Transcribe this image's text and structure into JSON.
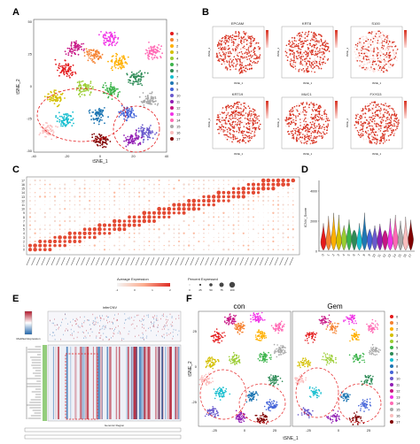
{
  "panel_labels": {
    "A": "A",
    "B": "B",
    "C": "C",
    "D": "D",
    "E": "E",
    "F": "F"
  },
  "colors": {
    "clusters": [
      "#e41a1c",
      "#f58231",
      "#ffb000",
      "#d4c000",
      "#9acd32",
      "#3cb44b",
      "#2e8b57",
      "#17becf",
      "#1f77b4",
      "#4363d8",
      "#6a5acd",
      "#911eb4",
      "#c71585",
      "#f032e6",
      "#ff69b4",
      "#a9a9a9",
      "#fabebe",
      "#800000"
    ],
    "feature_high": "#d7301f",
    "feature_low": "#fde0dd",
    "dot": "#e34a33",
    "cnv_red": "#b2182b",
    "cnv_blue": "#2166ac"
  },
  "panelA": {
    "xlabel": "tSNE_1",
    "ylabel": "tSNE_2",
    "xticks": [
      "-40",
      "-20",
      "0",
      "20",
      "40"
    ],
    "yticks": [
      "50",
      "25",
      "0",
      "-25",
      "-50"
    ],
    "legend": [
      "0",
      "1",
      "2",
      "3",
      "4",
      "5",
      "6",
      "7",
      "8",
      "9",
      "10",
      "11",
      "12",
      "13",
      "14",
      "15",
      "16",
      "17"
    ]
  },
  "panelB": {
    "genes": [
      "EPCAM",
      "KRT8",
      "S100",
      "KRT19",
      "MUC1",
      "FXYD3"
    ],
    "xlabel": "tSNE_1",
    "ylabel": "tSNE_2"
  },
  "panelC": {
    "rows": [
      "17",
      "16",
      "15",
      "14",
      "13",
      "12",
      "11",
      "10",
      "9",
      "8",
      "7",
      "6",
      "5",
      "4",
      "3",
      "2",
      "1",
      "0"
    ],
    "legend_title_1": "Average Expression",
    "legend_title_2": "Percent Expressed",
    "color_scale": [
      "-1",
      "0",
      "1",
      "2"
    ],
    "size_scale": [
      "0",
      "25",
      "50",
      "75",
      "100"
    ]
  },
  "panelD": {
    "ylabel": "ICNV_Score",
    "yticks": [
      "4000",
      "2000",
      "0"
    ],
    "categories": [
      "0",
      "1",
      "2",
      "3",
      "4",
      "5",
      "6",
      "7",
      "8",
      "9",
      "10",
      "11",
      "12",
      "13",
      "14",
      "15",
      "16",
      "17"
    ]
  },
  "panelE": {
    "title": "inferCNV",
    "legend_label": "Modified Expression",
    "xlabel": "Genomic Region"
  },
  "panelF": {
    "titles": [
      "con",
      "Gem"
    ],
    "xlabel": "tSNE_1",
    "ylabel": "tSNE_2",
    "xticks": [
      "-25",
      "0",
      "25"
    ],
    "yticks": [
      "25",
      "0",
      "-25"
    ],
    "legend": [
      "0",
      "1",
      "2",
      "3",
      "4",
      "5",
      "6",
      "7",
      "8",
      "9",
      "10",
      "11",
      "12",
      "13",
      "14",
      "15",
      "16",
      "17"
    ]
  }
}
